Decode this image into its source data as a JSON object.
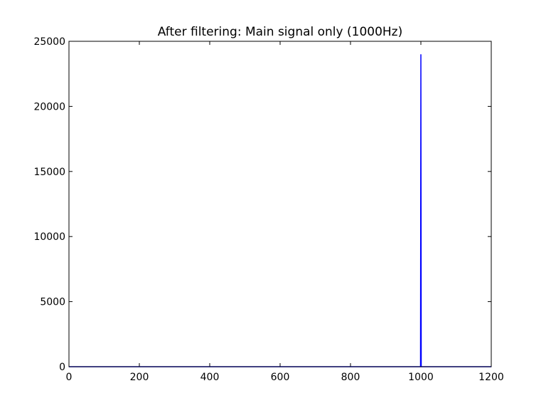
{
  "chart_data": {
    "type": "line",
    "title": "After filtering: Main signal only (1000Hz)",
    "xlabel": "",
    "ylabel": "",
    "xlim": [
      0,
      1200
    ],
    "ylim": [
      0,
      25000
    ],
    "x_ticks": [
      "0",
      "200",
      "400",
      "600",
      "800",
      "1000",
      "1200"
    ],
    "y_ticks": [
      "0",
      "5000",
      "10000",
      "15000",
      "20000",
      "25000"
    ],
    "grid": false,
    "series_color": "#0000ff",
    "x": [
      0,
      999,
      1000,
      1001,
      1200
    ],
    "y": [
      0,
      0,
      24000,
      0,
      0
    ]
  }
}
